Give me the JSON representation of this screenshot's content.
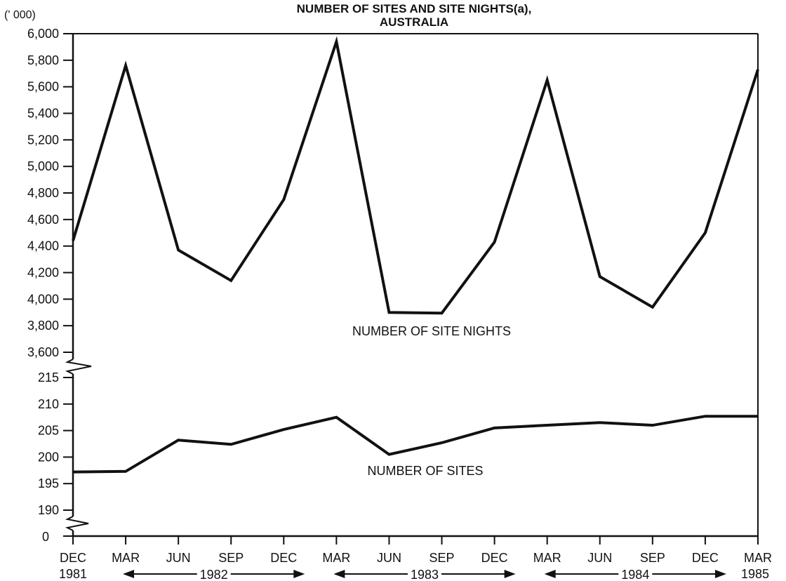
{
  "chart_data": {
    "type": "line",
    "title": "NUMBER OF SITES AND SITE NIGHTS(a),",
    "subtitle": "AUSTRALIA",
    "unit_label": "(' 000)",
    "x": [
      "DEC",
      "MAR",
      "JUN",
      "SEP",
      "DEC",
      "MAR",
      "JUN",
      "SEP",
      "DEC",
      "MAR",
      "JUN",
      "SEP",
      "DEC",
      "MAR"
    ],
    "first_year_label": "1981",
    "last_year_label": "1985",
    "year_spans": [
      {
        "label": "1982"
      },
      {
        "label": "1983"
      },
      {
        "label": "1984"
      }
    ],
    "upper_axis": {
      "ylim": [
        3600,
        6000
      ],
      "ticks": [
        "3,600",
        "3,800",
        "4,000",
        "4,200",
        "4,400",
        "4,600",
        "4,800",
        "5,000",
        "5,200",
        "5,400",
        "5,600",
        "5,800",
        "6,000"
      ]
    },
    "lower_axis": {
      "ylim": [
        190,
        215
      ],
      "ticks": [
        "190",
        "195",
        "200",
        "205",
        "210",
        "215"
      ],
      "zero_label": "0"
    },
    "series": [
      {
        "name": "NUMBER OF SITE NIGHTS",
        "axis": "upper",
        "values": [
          4440,
          5760,
          4370,
          4140,
          4750,
          5940,
          3900,
          3895,
          4430,
          5650,
          4170,
          3940,
          4500,
          5730
        ]
      },
      {
        "name": "NUMBER OF SITES",
        "axis": "lower",
        "values": [
          197.2,
          197.3,
          203.2,
          202.4,
          205.2,
          207.5,
          200.5,
          202.7,
          205.5,
          206,
          206.5,
          206,
          207.7,
          207.7
        ]
      }
    ],
    "grid": false,
    "legend": "none"
  }
}
